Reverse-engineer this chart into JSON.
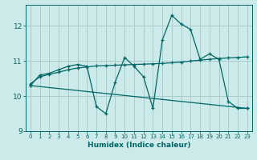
{
  "title": "",
  "xlabel": "Humidex (Indice chaleur)",
  "bg_color": "#cceaea",
  "line_color": "#006666",
  "grid_color": "#aacccc",
  "xlim": [
    -0.5,
    23.5
  ],
  "ylim": [
    9.0,
    12.6
  ],
  "yticks": [
    9,
    10,
    11,
    12
  ],
  "xticks": [
    0,
    1,
    2,
    3,
    4,
    5,
    6,
    7,
    8,
    9,
    10,
    11,
    12,
    13,
    14,
    15,
    16,
    17,
    18,
    19,
    20,
    21,
    22,
    23
  ],
  "series": [
    {
      "x": [
        0,
        1,
        2,
        3,
        4,
        5,
        6,
        7,
        8,
        9,
        10,
        11,
        12,
        13,
        14,
        15,
        16,
        17,
        18,
        19,
        20,
        21,
        22,
        23
      ],
      "y": [
        10.3,
        10.6,
        10.65,
        10.75,
        10.85,
        10.9,
        10.85,
        9.7,
        9.5,
        10.4,
        11.1,
        10.85,
        10.55,
        9.65,
        11.6,
        12.3,
        12.05,
        11.9,
        11.05,
        11.2,
        11.05,
        9.85,
        9.65,
        9.65
      ]
    },
    {
      "x": [
        0,
        1,
        2,
        3,
        4,
        5,
        6,
        7,
        8,
        9,
        10,
        11,
        12,
        13,
        14,
        15,
        16,
        17,
        18,
        19,
        20,
        21,
        22,
        23
      ],
      "y": [
        10.35,
        10.55,
        10.62,
        10.68,
        10.75,
        10.8,
        10.83,
        10.86,
        10.87,
        10.88,
        10.89,
        10.9,
        10.91,
        10.92,
        10.93,
        10.95,
        10.97,
        11.0,
        11.02,
        11.05,
        11.07,
        11.09,
        11.1,
        11.12
      ]
    },
    {
      "x": [
        0,
        23
      ],
      "y": [
        10.3,
        9.65
      ]
    }
  ]
}
